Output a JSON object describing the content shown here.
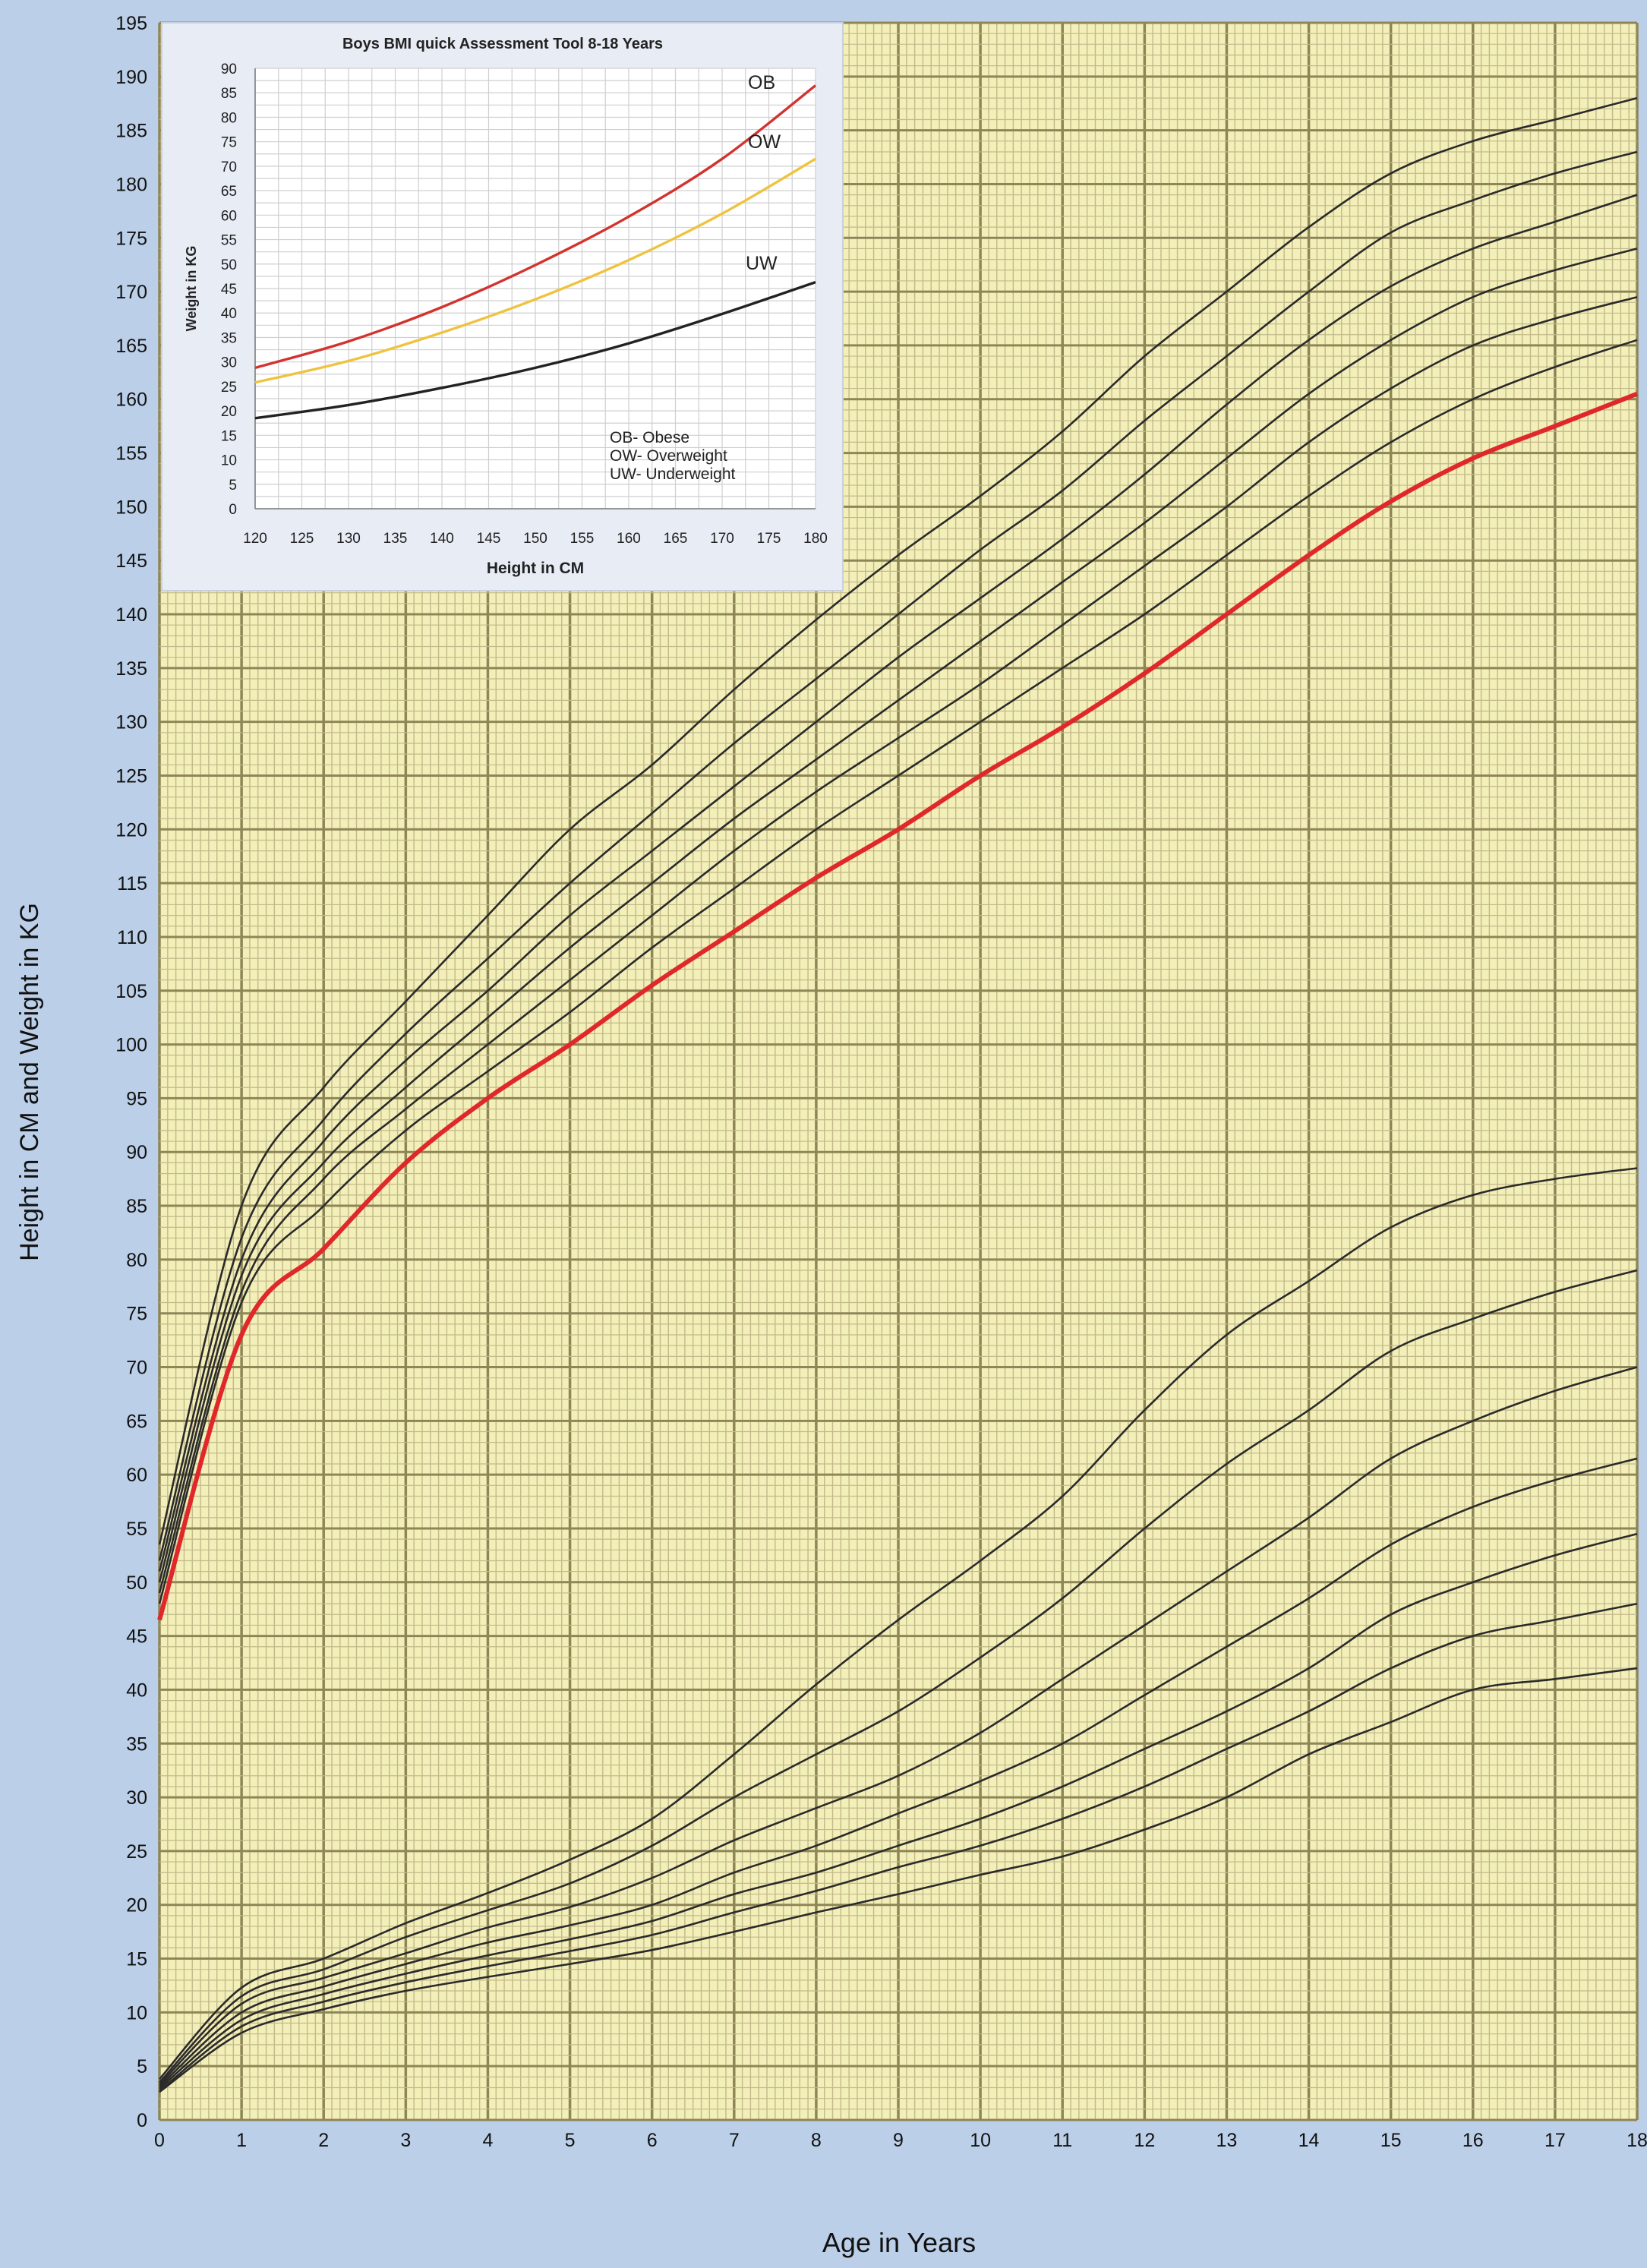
{
  "main_chart": {
    "ylabel": "Height in CM and Weight in KG",
    "xlabel": "Age in Years"
  },
  "inset_chart": {
    "title": "Boys BMI quick Assessment Tool 8-18 Years",
    "ylabel": "Weight in KG",
    "xlabel": "Height in CM",
    "legend": [
      "OB- Obese",
      "OW- Overweight",
      "UW- Underweight"
    ]
  },
  "colors": {
    "background": "#bccfe8",
    "plot_bg": "#f3efb8",
    "grid_minor": "#c3b98c",
    "grid_major": "#8f8658",
    "curve": "#2a2a2a",
    "highlight": "#e0282a",
    "obese": "#d2332f",
    "overweight": "#efc33f",
    "underweight": "#222222"
  },
  "chart_data": [
    {
      "type": "line",
      "xlabel": "Age in Years",
      "ylabel": "Height in CM and Weight in KG",
      "xlim": [
        0,
        18
      ],
      "ylim": [
        0,
        195
      ],
      "x_ticks": [
        0,
        1,
        2,
        3,
        4,
        5,
        6,
        7,
        8,
        9,
        10,
        11,
        12,
        13,
        14,
        15,
        16,
        17,
        18
      ],
      "y_ticks": [
        0,
        5,
        10,
        15,
        20,
        25,
        30,
        35,
        40,
        45,
        50,
        55,
        60,
        65,
        70,
        75,
        80,
        85,
        90,
        95,
        100,
        105,
        110,
        115,
        120,
        125,
        130,
        135,
        140,
        145,
        150,
        155,
        160,
        165,
        170,
        175,
        180,
        185,
        190,
        195
      ],
      "grid": true,
      "x": [
        0,
        1,
        2,
        3,
        4,
        5,
        6,
        7,
        8,
        9,
        10,
        11,
        12,
        13,
        14,
        15,
        16,
        17,
        18
      ],
      "height_series": [
        {
          "highlight": false,
          "values": [
            53.5,
            85,
            96,
            104,
            112,
            120,
            126,
            133,
            139.5,
            145.5,
            151,
            157,
            164,
            170,
            176,
            181,
            184,
            186,
            188
          ]
        },
        {
          "highlight": false,
          "values": [
            52,
            82,
            93,
            101,
            108,
            115,
            121.5,
            128,
            134,
            140,
            146,
            151.5,
            158,
            164,
            170,
            175.5,
            178.5,
            181,
            183
          ]
        },
        {
          "highlight": false,
          "values": [
            51,
            80,
            91,
            98.5,
            105,
            112,
            118,
            124,
            130,
            136,
            141.5,
            147,
            153,
            159.5,
            165.5,
            170.5,
            174,
            176.5,
            179
          ]
        },
        {
          "highlight": false,
          "values": [
            50,
            78.5,
            89,
            96,
            102.5,
            109,
            115,
            121,
            126.5,
            132,
            137.5,
            143,
            148.5,
            154.5,
            160.5,
            165.5,
            169.5,
            172,
            174
          ]
        },
        {
          "highlight": false,
          "values": [
            49,
            77,
            87.5,
            94,
            100,
            106,
            112,
            118,
            123.5,
            128.5,
            133.5,
            139,
            144.5,
            150,
            156,
            161,
            165,
            167.5,
            169.5
          ]
        },
        {
          "highlight": false,
          "values": [
            48,
            76,
            85,
            92,
            97.5,
            103,
            109,
            114.5,
            120,
            125,
            130,
            135,
            140,
            145.5,
            151,
            156,
            160,
            163,
            165.5
          ]
        },
        {
          "highlight": true,
          "values": [
            46.5,
            73,
            81,
            89,
            95,
            100,
            105.5,
            110.5,
            115.5,
            120,
            125,
            129.5,
            134.5,
            140,
            145.5,
            150.5,
            154.5,
            157.5,
            160.5
          ]
        }
      ],
      "weight_series": [
        {
          "highlight": false,
          "values": [
            3.8,
            12.3,
            15,
            18.3,
            21.1,
            24.2,
            28,
            34,
            40.5,
            46.5,
            52,
            58,
            66,
            73,
            78,
            83,
            86,
            87.5,
            88.5
          ]
        },
        {
          "highlight": false,
          "values": [
            3.5,
            11.5,
            14,
            17,
            19.5,
            22,
            25.5,
            30,
            34,
            38,
            43,
            48.5,
            55,
            61,
            66,
            71.5,
            74.5,
            77,
            79
          ]
        },
        {
          "highlight": false,
          "values": [
            3.3,
            10.8,
            13.2,
            15.5,
            17.9,
            19.8,
            22.5,
            26,
            29,
            32,
            36,
            41,
            46,
            51,
            56,
            61.5,
            65,
            67.8,
            70
          ]
        },
        {
          "highlight": false,
          "values": [
            3.1,
            10,
            12.4,
            14.5,
            16.5,
            18.1,
            20,
            23,
            25.5,
            28.5,
            31.5,
            35,
            39.5,
            44,
            48.5,
            53.5,
            57,
            59.5,
            61.5
          ]
        },
        {
          "highlight": false,
          "values": [
            2.9,
            9.3,
            11.7,
            13.6,
            15.3,
            16.8,
            18.5,
            21,
            23,
            25.5,
            28,
            31,
            34.5,
            38,
            42,
            47,
            50,
            52.5,
            54.5
          ]
        },
        {
          "highlight": false,
          "values": [
            2.7,
            8.7,
            11,
            12.8,
            14.3,
            15.7,
            17.2,
            19.3,
            21.3,
            23.5,
            25.5,
            28,
            31,
            34.5,
            38,
            42,
            45,
            46.5,
            48
          ]
        },
        {
          "highlight": false,
          "values": [
            2.6,
            8.1,
            10.3,
            12,
            13.3,
            14.5,
            15.8,
            17.5,
            19.3,
            21,
            22.8,
            24.5,
            27,
            30,
            34,
            37,
            40,
            41,
            42
          ]
        }
      ]
    },
    {
      "type": "line",
      "title": "Boys BMI quick Assessment Tool 8-18 Years",
      "xlabel": "Height in CM",
      "ylabel": "Weight in KG",
      "xlim": [
        120,
        180
      ],
      "ylim": [
        0,
        90
      ],
      "x_ticks": [
        120,
        125,
        130,
        135,
        140,
        145,
        150,
        155,
        160,
        165,
        170,
        175,
        180
      ],
      "y_ticks": [
        0,
        5,
        10,
        15,
        20,
        25,
        30,
        35,
        40,
        45,
        50,
        55,
        60,
        65,
        70,
        75,
        80,
        85,
        90
      ],
      "grid": true,
      "x": [
        120,
        130,
        140,
        150,
        160,
        170,
        180
      ],
      "series": [
        {
          "name": "OB",
          "color": "#d2332f",
          "values": [
            28.8,
            34.2,
            41.2,
            49.8,
            59.7,
            71.5,
            86.5
          ]
        },
        {
          "name": "OW",
          "color": "#efc33f",
          "values": [
            25.8,
            30.2,
            36,
            42.8,
            50.8,
            60.3,
            71.5
          ]
        },
        {
          "name": "UW",
          "color": "#222222",
          "values": [
            18.5,
            21.2,
            24.7,
            28.8,
            33.8,
            39.8,
            46.3
          ]
        }
      ],
      "legend_position": "bottom-right"
    }
  ]
}
